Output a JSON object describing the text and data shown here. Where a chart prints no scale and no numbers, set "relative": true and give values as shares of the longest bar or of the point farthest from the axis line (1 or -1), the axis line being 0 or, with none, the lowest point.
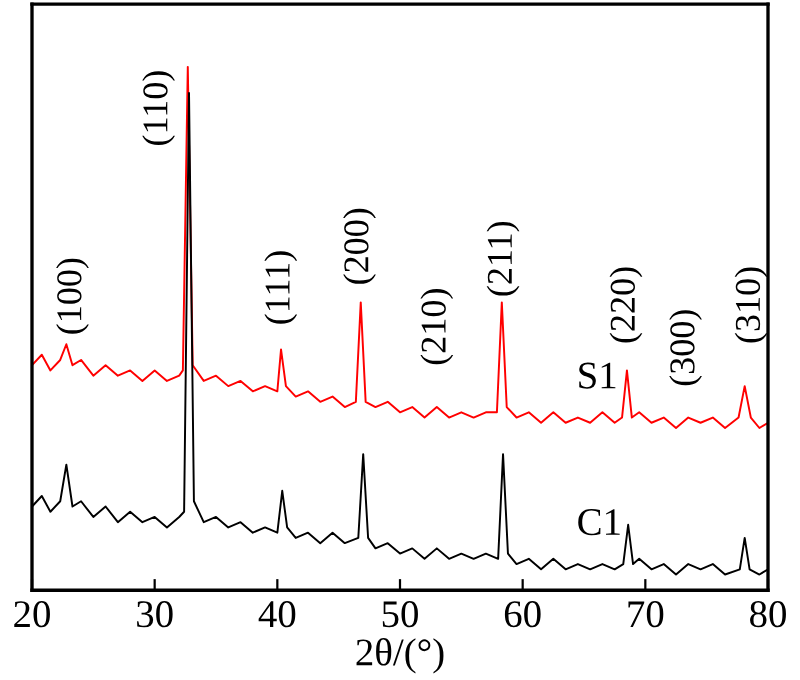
{
  "chart_data": {
    "type": "line",
    "relative": true,
    "xlabel": "2θ/(°)",
    "xlim": [
      20,
      80
    ],
    "xticks": [
      20,
      30,
      40,
      50,
      60,
      70,
      80
    ],
    "grid": false,
    "legend": false,
    "marker": "none",
    "line_style": "solid",
    "tick_labels": "x",
    "series": [
      {
        "name": "S1",
        "color": "#ff0000",
        "x": [
          20,
          20.8,
          21.5,
          22.3,
          22.8,
          23.3,
          24,
          25,
          26,
          27,
          28,
          29,
          30,
          31,
          32,
          32.3,
          32.7,
          33.1,
          34,
          35,
          36,
          37,
          38,
          39,
          40,
          40.3,
          40.7,
          41.5,
          42.5,
          43.5,
          44.5,
          45.5,
          46.4,
          46.8,
          47.2,
          48,
          49,
          50,
          51,
          52,
          53,
          54,
          55,
          56,
          57,
          57.9,
          58.3,
          58.7,
          59.5,
          60.5,
          61.5,
          62.5,
          63.5,
          64.5,
          65.5,
          66.5,
          67.5,
          68.1,
          68.5,
          68.9,
          69.5,
          70.5,
          71.5,
          72.5,
          73.5,
          74.5,
          75.5,
          76.5,
          77.6,
          78.1,
          78.6,
          79.3,
          80
        ],
        "values": [
          0.43,
          0.45,
          0.42,
          0.44,
          0.47,
          0.43,
          0.44,
          0.41,
          0.43,
          0.41,
          0.42,
          0.4,
          0.42,
          0.4,
          0.41,
          0.42,
          1.0,
          0.43,
          0.4,
          0.41,
          0.39,
          0.4,
          0.38,
          0.39,
          0.38,
          0.46,
          0.39,
          0.37,
          0.38,
          0.36,
          0.37,
          0.35,
          0.36,
          0.55,
          0.36,
          0.35,
          0.36,
          0.34,
          0.35,
          0.33,
          0.35,
          0.33,
          0.34,
          0.33,
          0.34,
          0.34,
          0.55,
          0.35,
          0.33,
          0.34,
          0.32,
          0.34,
          0.32,
          0.33,
          0.32,
          0.34,
          0.32,
          0.33,
          0.42,
          0.33,
          0.34,
          0.32,
          0.33,
          0.31,
          0.33,
          0.32,
          0.33,
          0.31,
          0.33,
          0.39,
          0.33,
          0.31,
          0.32
        ]
      },
      {
        "name": "C1",
        "color": "#000000",
        "x": [
          20,
          20.8,
          21.5,
          22.3,
          22.8,
          23.3,
          24,
          25,
          26,
          27,
          28,
          29,
          30,
          31,
          32,
          32.4,
          32.8,
          33.2,
          34,
          35,
          36,
          37,
          38,
          39,
          40,
          40.4,
          40.8,
          41.5,
          42.5,
          43.5,
          44.5,
          45.5,
          46.6,
          47,
          47.4,
          48,
          49,
          50,
          51,
          52,
          53,
          54,
          55,
          56,
          57,
          58,
          58.4,
          58.8,
          59.5,
          60.5,
          61.5,
          62.5,
          63.5,
          64.5,
          65.5,
          66.5,
          67.5,
          68.2,
          68.6,
          69,
          69.5,
          70.5,
          71.5,
          72.5,
          73.5,
          74.5,
          75.5,
          76.5,
          77.7,
          78.1,
          78.5,
          79.3,
          80
        ],
        "values": [
          0.16,
          0.18,
          0.15,
          0.17,
          0.24,
          0.16,
          0.17,
          0.14,
          0.16,
          0.13,
          0.15,
          0.13,
          0.14,
          0.12,
          0.14,
          0.15,
          0.95,
          0.17,
          0.13,
          0.14,
          0.12,
          0.13,
          0.11,
          0.12,
          0.11,
          0.19,
          0.12,
          0.1,
          0.11,
          0.09,
          0.11,
          0.09,
          0.1,
          0.26,
          0.1,
          0.08,
          0.09,
          0.07,
          0.08,
          0.06,
          0.08,
          0.06,
          0.07,
          0.06,
          0.07,
          0.06,
          0.26,
          0.07,
          0.05,
          0.06,
          0.04,
          0.06,
          0.04,
          0.05,
          0.04,
          0.05,
          0.04,
          0.05,
          0.125,
          0.05,
          0.06,
          0.04,
          0.05,
          0.03,
          0.05,
          0.04,
          0.05,
          0.03,
          0.04,
          0.1,
          0.04,
          0.03,
          0.04
        ]
      }
    ],
    "annotations": [
      "(100)",
      "(110)",
      "(111)",
      "(200)",
      "(210)",
      "(211)",
      "(220)",
      "(300)",
      "(310)"
    ]
  }
}
